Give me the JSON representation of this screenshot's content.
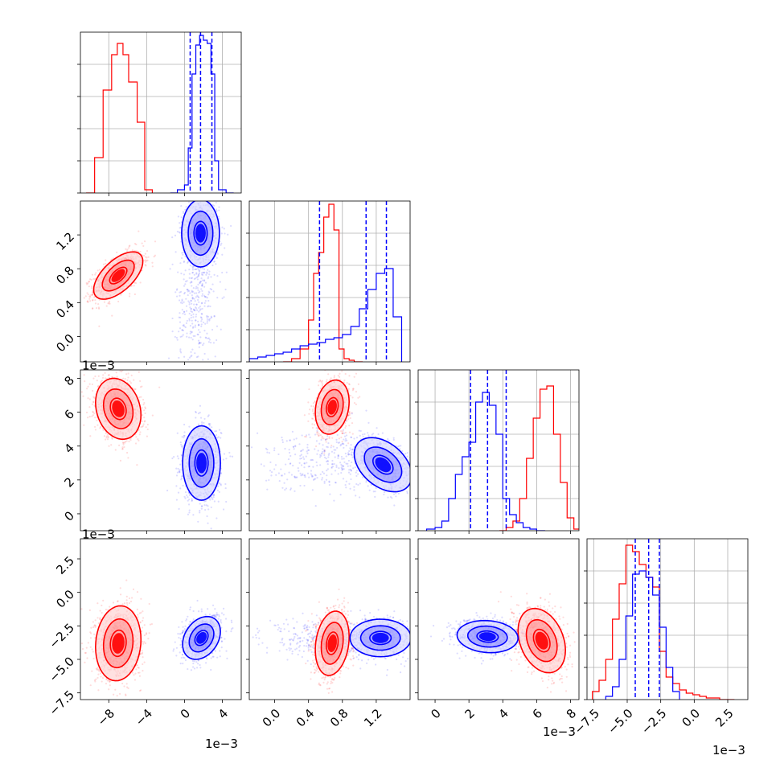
{
  "chart_data": {
    "type": "corner",
    "multiplier_label": "1e−3",
    "colors": {
      "red": "#ff0000",
      "blue": "#0000ff"
    },
    "parameters": [
      {
        "range": [
          -11,
          6
        ],
        "ticks": [
          -8,
          -4,
          0,
          4
        ],
        "tick_labels": [
          "−8",
          "−4",
          "0",
          "4"
        ]
      },
      {
        "range": [
          -0.3,
          1.6
        ],
        "ticks": [
          0.0,
          0.4,
          0.8,
          1.2
        ],
        "tick_labels": [
          "0.0",
          "0.4",
          "0.8",
          "1.2"
        ]
      },
      {
        "range": [
          -1,
          8.5
        ],
        "ticks": [
          0,
          2,
          4,
          6,
          8
        ],
        "tick_labels": [
          "0",
          "2",
          "4",
          "6",
          "8"
        ]
      },
      {
        "range": [
          -8,
          4
        ],
        "ticks": [
          -7.5,
          -5.0,
          -2.5,
          0.0,
          2.5
        ],
        "tick_labels": [
          "−7.5",
          "−5.0",
          "−2.5",
          "0.0",
          "2.5"
        ]
      }
    ],
    "histograms": [
      {
        "param": 0,
        "quantiles_blue": [
          0.6,
          1.7,
          2.9
        ],
        "red": {
          "edges": [
            -10.4,
            -9.5,
            -8.6,
            -7.7,
            -7.1,
            -6.5,
            -5.9,
            -5.0,
            -4.2,
            -3.4
          ],
          "counts": [
            0.0,
            0.22,
            0.64,
            0.86,
            0.93,
            0.86,
            0.69,
            0.44,
            0.02
          ]
        },
        "blue": {
          "edges": [
            -1.5,
            -0.75,
            0.0,
            0.4,
            0.8,
            1.2,
            1.6,
            2.0,
            2.4,
            2.8,
            3.2,
            3.6,
            4.4,
            5.2
          ],
          "counts": [
            0.0,
            0.02,
            0.05,
            0.28,
            0.74,
            0.92,
            0.98,
            0.95,
            0.93,
            0.74,
            0.2,
            0.02,
            0.0
          ]
        }
      },
      {
        "param": 1,
        "quantiles_blue": [
          0.53,
          1.08,
          1.32
        ],
        "red": {
          "edges": [
            0.1,
            0.2,
            0.3,
            0.4,
            0.46,
            0.52,
            0.58,
            0.64,
            0.7,
            0.76,
            0.82,
            0.88,
            0.94,
            1.04
          ],
          "counts": [
            0.0,
            0.02,
            0.08,
            0.26,
            0.55,
            0.68,
            0.9,
            0.98,
            0.82,
            0.08,
            0.02,
            0.01,
            0.0
          ]
        },
        "blue": {
          "edges": [
            -0.3,
            -0.2,
            -0.1,
            0.0,
            0.1,
            0.2,
            0.3,
            0.4,
            0.5,
            0.6,
            0.7,
            0.8,
            0.9,
            1.0,
            1.1,
            1.2,
            1.3,
            1.4,
            1.5
          ],
          "counts": [
            0.02,
            0.03,
            0.04,
            0.05,
            0.06,
            0.08,
            0.1,
            0.11,
            0.12,
            0.14,
            0.15,
            0.17,
            0.22,
            0.33,
            0.45,
            0.55,
            0.58,
            0.28
          ]
        }
      },
      {
        "param": 2,
        "quantiles_blue": [
          2.1,
          3.1,
          4.2
        ],
        "red": {
          "edges": [
            3.8,
            4.2,
            4.6,
            5.0,
            5.4,
            5.8,
            6.2,
            6.6,
            7.0,
            7.4,
            7.8,
            8.2,
            8.6
          ],
          "counts": [
            0.0,
            0.02,
            0.06,
            0.2,
            0.45,
            0.7,
            0.88,
            0.9,
            0.6,
            0.3,
            0.08,
            0.01
          ]
        },
        "blue": {
          "edges": [
            -0.5,
            0.0,
            0.4,
            0.8,
            1.2,
            1.6,
            2.0,
            2.4,
            2.8,
            3.2,
            3.6,
            4.0,
            4.4,
            4.8,
            5.2,
            5.6,
            6.0,
            6.5
          ],
          "counts": [
            0.01,
            0.02,
            0.06,
            0.2,
            0.35,
            0.46,
            0.55,
            0.8,
            0.86,
            0.78,
            0.6,
            0.2,
            0.1,
            0.05,
            0.02,
            0.01,
            0.0
          ]
        }
      },
      {
        "param": 3,
        "quantiles_blue": [
          -4.4,
          -3.4,
          -2.6
        ],
        "red": {
          "edges": [
            -7.6,
            -7.1,
            -6.6,
            -6.1,
            -5.6,
            -5.1,
            -4.6,
            -4.1,
            -3.6,
            -3.1,
            -2.6,
            -2.1,
            -1.6,
            -1.1,
            -0.6,
            -0.1,
            0.4,
            0.9,
            1.4,
            1.9,
            2.4,
            3.0
          ],
          "counts": [
            0.05,
            0.12,
            0.25,
            0.5,
            0.72,
            0.96,
            0.92,
            0.84,
            0.76,
            0.7,
            0.3,
            0.14,
            0.1,
            0.06,
            0.04,
            0.03,
            0.02,
            0.01,
            0.01,
            0.0,
            0.0
          ]
        },
        "blue": {
          "edges": [
            -6.6,
            -6.1,
            -5.6,
            -5.1,
            -4.6,
            -4.1,
            -3.6,
            -3.1,
            -2.6,
            -2.1,
            -1.6,
            -1.1
          ],
          "counts": [
            0.02,
            0.08,
            0.25,
            0.52,
            0.78,
            0.8,
            0.76,
            0.65,
            0.45,
            0.2,
            0.05
          ]
        }
      }
    ],
    "distributions_2d": [
      {
        "x": 0,
        "y": 1,
        "red": {
          "mean": [
            -7.0,
            0.72
          ],
          "sd": [
            1.3,
            0.14
          ],
          "corr": 0.6
        },
        "blue": {
          "mean": [
            1.7,
            1.22
          ],
          "sd": [
            1.0,
            0.2
          ],
          "corr": 0.0,
          "tail": {
            "mean": [
              1.3,
              0.35
            ],
            "sd": [
              1.1,
              0.35
            ]
          }
        }
      },
      {
        "x": 0,
        "y": 2,
        "red": {
          "mean": [
            -7.0,
            6.2
          ],
          "sd": [
            1.2,
            0.9
          ],
          "corr": -0.2
        },
        "blue": {
          "mean": [
            1.8,
            3.0
          ],
          "sd": [
            1.0,
            1.1
          ],
          "corr": 0.0
        }
      },
      {
        "x": 0,
        "y": 3,
        "red": {
          "mean": [
            -7.0,
            -3.8
          ],
          "sd": [
            1.2,
            1.4
          ],
          "corr": 0.1
        },
        "blue": {
          "mean": [
            1.8,
            -3.4
          ],
          "sd": [
            1.0,
            0.8
          ],
          "corr": 0.3
        }
      },
      {
        "x": 1,
        "y": 2,
        "red": {
          "mean": [
            0.68,
            6.3
          ],
          "sd": [
            0.1,
            0.8
          ],
          "corr": 0.2
        },
        "blue": {
          "mean": [
            1.28,
            2.9
          ],
          "sd": [
            0.17,
            0.8
          ],
          "corr": -0.4,
          "tail": {
            "mean": [
              0.6,
              3.2
            ],
            "sd": [
              0.35,
              0.9
            ]
          }
        }
      },
      {
        "x": 1,
        "y": 3,
        "red": {
          "mean": [
            0.68,
            -3.8
          ],
          "sd": [
            0.1,
            1.2
          ],
          "corr": 0.2
        },
        "blue": {
          "mean": [
            1.25,
            -3.4
          ],
          "sd": [
            0.18,
            0.7
          ],
          "corr": 0.0,
          "tail": {
            "mean": [
              0.6,
              -3.5
            ],
            "sd": [
              0.35,
              0.7
            ]
          }
        }
      },
      {
        "x": 2,
        "y": 3,
        "red": {
          "mean": [
            6.3,
            -3.6
          ],
          "sd": [
            0.7,
            1.2
          ],
          "corr": -0.3
        },
        "blue": {
          "mean": [
            3.1,
            -3.3
          ],
          "sd": [
            0.9,
            0.6
          ],
          "corr": -0.1
        }
      }
    ]
  }
}
